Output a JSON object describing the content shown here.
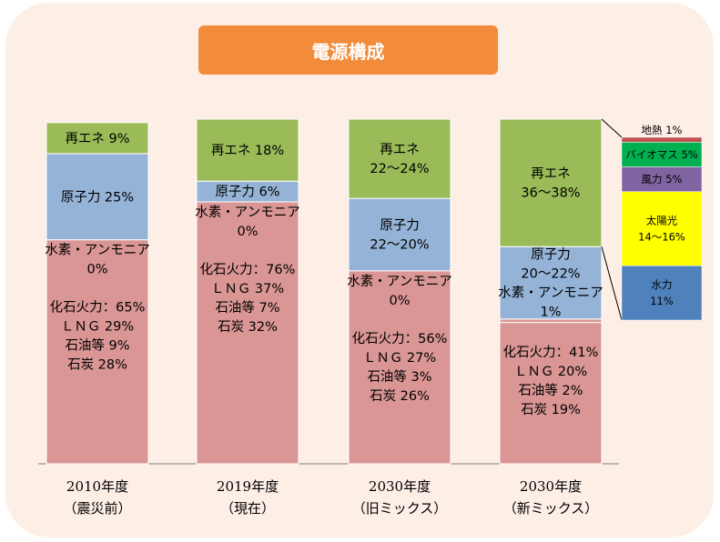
{
  "title": "電源構成",
  "chart_data": {
    "type": "bar",
    "stacked": true,
    "categories": [
      [
        "2010年度",
        "（震災前）"
      ],
      [
        "2019年度",
        "（現在）"
      ],
      [
        "2030年度",
        "（旧ミックス）"
      ],
      [
        "2030年度",
        "（新ミックス）"
      ]
    ],
    "series": [
      {
        "name": "化石火力",
        "color": "#d99694",
        "values": [
          65,
          76,
          56,
          41
        ]
      },
      {
        "name": "水素・アンモニア",
        "color": "#d99694",
        "values": [
          0,
          0,
          0,
          1
        ]
      },
      {
        "name": "原子力",
        "color": "#95b3d7",
        "values": [
          25,
          6,
          21,
          21
        ]
      },
      {
        "name": "再エネ",
        "color": "#9bbb59",
        "values": [
          9,
          18,
          23,
          37
        ]
      }
    ],
    "labels": [
      [
        {
          "series": "再エネ",
          "lines": [
            "再エネ  9%"
          ]
        },
        {
          "series": "原子力",
          "lines": [
            "原子力  25%"
          ]
        },
        {
          "series": "化石火力",
          "lines": [
            "水素・アンモニア",
            "0%",
            "",
            "化石火力：65%",
            "ＬＮＧ  29%",
            "石油等  9%",
            "石炭  28%"
          ]
        }
      ],
      [
        {
          "series": "再エネ",
          "lines": [
            "再エネ  18%"
          ]
        },
        {
          "series": "原子力",
          "lines": [
            "原子力  6%"
          ]
        },
        {
          "series": "化石火力",
          "lines": [
            "水素・アンモニア",
            "0%",
            "",
            "化石火力：76%",
            "ＬＮＧ  37%",
            "石油等  7%",
            "石炭  32%"
          ]
        }
      ],
      [
        {
          "series": "再エネ",
          "lines": [
            "再エネ",
            "22～24%"
          ]
        },
        {
          "series": "原子力",
          "lines": [
            "原子力",
            "22～20%"
          ]
        },
        {
          "series": "化石火力",
          "lines": [
            "水素・アンモニア",
            "0%",
            "",
            "化石火力：56%",
            "ＬＮＧ  27%",
            "石油等  3%",
            "石炭  26%"
          ]
        }
      ],
      [
        {
          "series": "再エネ",
          "lines": [
            "再エネ",
            "36～38%"
          ]
        },
        {
          "series": "原子力",
          "lines": [
            "原子力",
            "20～22%",
            "水素・アンモニア",
            "1%"
          ]
        },
        {
          "series": "化石火力",
          "lines": [
            "",
            "化石火力：41%",
            "ＬＮＧ  20%",
            "石油等  2%",
            "石炭  19%"
          ]
        }
      ]
    ],
    "renewables_breakdown": [
      {
        "label": "地熱 1%",
        "lines": [
          "地熱 1%"
        ],
        "value": 1,
        "color": "#c0504d"
      },
      {
        "label": "バイオマス 5%",
        "lines": [
          "バイオマス 5%"
        ],
        "value": 5,
        "color": "#00b050"
      },
      {
        "label": "風力 5%",
        "lines": [
          "風力 5%"
        ],
        "value": 5,
        "color": "#8064a2"
      },
      {
        "label": "太陽光 14～16%",
        "lines": [
          "太陽光",
          "14～16%"
        ],
        "value": 15,
        "color": "#ffff00"
      },
      {
        "label": "水力 11%",
        "lines": [
          "水力",
          "11%"
        ],
        "value": 11,
        "color": "#4f81bd"
      }
    ],
    "ylim": [
      0,
      100
    ]
  }
}
